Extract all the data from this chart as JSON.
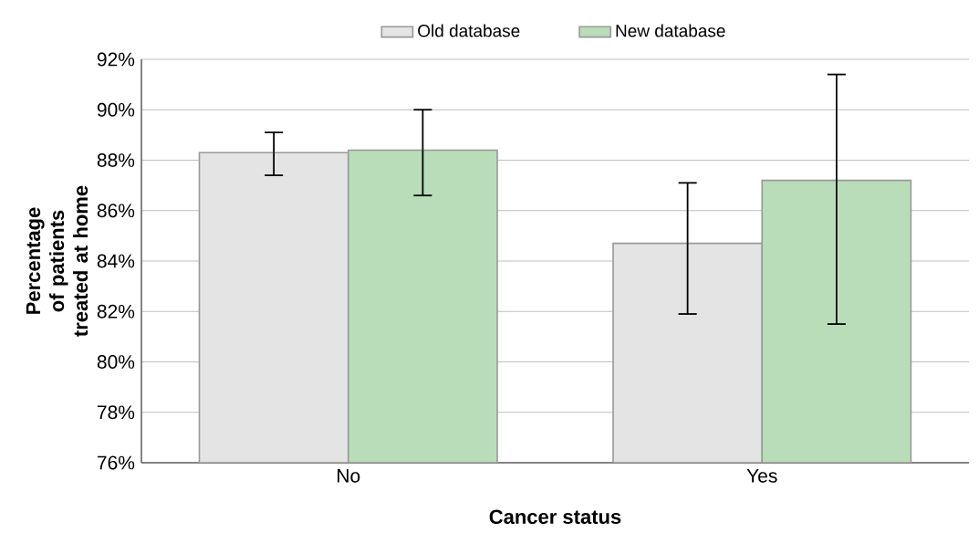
{
  "chart_data": {
    "type": "bar",
    "xlabel": "Cancer status",
    "ylabel": "Percentage of patients treated at home",
    "categories": [
      "No",
      "Yes"
    ],
    "series": [
      {
        "name": "Old database",
        "color": "#e4e4e4",
        "values": [
          88.3,
          84.7
        ],
        "errors": [
          [
            87.4,
            89.1
          ],
          [
            81.9,
            87.1
          ]
        ]
      },
      {
        "name": "New database",
        "color": "#b9dcb9",
        "values": [
          88.4,
          87.2
        ],
        "errors": [
          [
            86.6,
            90.0
          ],
          [
            81.5,
            91.4
          ]
        ]
      }
    ],
    "ylim": [
      76,
      92
    ],
    "yticks": [
      {
        "value": 76,
        "label": "76%"
      },
      {
        "value": 78,
        "label": "78%"
      },
      {
        "value": 80,
        "label": "80%"
      },
      {
        "value": 82,
        "label": "82%"
      },
      {
        "value": 84,
        "label": "84%"
      },
      {
        "value": 86,
        "label": "86%"
      },
      {
        "value": 88,
        "label": "88%"
      },
      {
        "value": 90,
        "label": "90%"
      },
      {
        "value": 92,
        "label": "92%"
      }
    ],
    "grid": "y",
    "legend": "top"
  }
}
